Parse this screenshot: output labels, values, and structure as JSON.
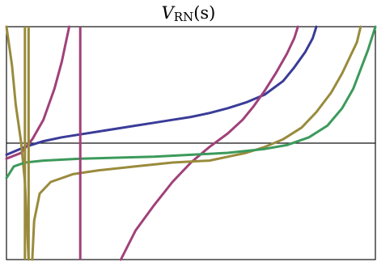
{
  "chart_data": {
    "type": "line",
    "title": {
      "symbol": "V",
      "subscript": "RN",
      "argument": "(s)"
    },
    "axes_frame": true,
    "grid": false,
    "ylim": [
      -6,
      6
    ],
    "xlim": [
      0,
      1
    ],
    "series": [
      {
        "color": "#3A3C98",
        "points": [
          [
            0.0,
            -0.6
          ],
          [
            0.05,
            -0.2
          ],
          [
            0.1,
            0.1
          ],
          [
            0.15,
            0.3
          ],
          [
            0.2,
            0.45
          ],
          [
            0.25,
            0.6
          ],
          [
            0.3,
            0.75
          ],
          [
            0.35,
            0.9
          ],
          [
            0.4,
            1.05
          ],
          [
            0.45,
            1.2
          ],
          [
            0.5,
            1.35
          ],
          [
            0.55,
            1.55
          ],
          [
            0.6,
            1.8
          ],
          [
            0.65,
            2.1
          ],
          [
            0.7,
            2.5
          ],
          [
            0.75,
            3.2
          ],
          [
            0.78,
            3.9
          ],
          [
            0.81,
            4.7
          ],
          [
            0.83,
            5.4
          ],
          [
            0.84,
            6.0
          ]
        ]
      },
      {
        "color": "#A0417A",
        "points": [
          [
            0.0,
            -0.8
          ],
          [
            0.04,
            -0.5
          ],
          [
            0.07,
            0.2
          ],
          [
            0.1,
            1.2
          ],
          [
            0.13,
            2.8
          ],
          [
            0.15,
            4.2
          ],
          [
            0.17,
            6.0
          ]
        ]
      },
      {
        "color": "#A0417A",
        "points": [
          [
            0.31,
            -6.0
          ],
          [
            0.35,
            -4.5
          ],
          [
            0.4,
            -3.2
          ],
          [
            0.45,
            -2.0
          ],
          [
            0.5,
            -1.0
          ],
          [
            0.55,
            -0.2
          ],
          [
            0.6,
            0.5
          ],
          [
            0.64,
            1.2
          ],
          [
            0.67,
            1.9
          ],
          [
            0.7,
            2.7
          ],
          [
            0.73,
            3.6
          ],
          [
            0.76,
            4.6
          ],
          [
            0.78,
            5.4
          ],
          [
            0.79,
            6.0
          ]
        ]
      },
      {
        "color": "#998B3C",
        "points": [
          [
            0.0,
            6.0
          ],
          [
            0.015,
            4.0
          ],
          [
            0.025,
            2.0
          ],
          [
            0.04,
            0.0
          ],
          [
            0.05,
            -2.0
          ],
          [
            0.055,
            -4.0
          ],
          [
            0.06,
            -6.0
          ]
        ]
      },
      {
        "color": "#998B3C",
        "points": [
          [
            0.07,
            -6.0
          ],
          [
            0.075,
            -4.0
          ],
          [
            0.09,
            -2.6
          ],
          [
            0.12,
            -2.0
          ],
          [
            0.18,
            -1.6
          ],
          [
            0.25,
            -1.4
          ],
          [
            0.35,
            -1.2
          ],
          [
            0.45,
            -1.0
          ],
          [
            0.55,
            -0.9
          ],
          [
            0.6,
            -0.7
          ],
          [
            0.65,
            -0.5
          ],
          [
            0.7,
            -0.2
          ],
          [
            0.75,
            0.2
          ],
          [
            0.8,
            0.8
          ],
          [
            0.84,
            1.6
          ],
          [
            0.88,
            2.6
          ],
          [
            0.91,
            3.6
          ],
          [
            0.93,
            4.4
          ],
          [
            0.95,
            5.2
          ],
          [
            0.96,
            6.0
          ]
        ]
      },
      {
        "color": "#3C9A5B",
        "points": [
          [
            0.0,
            -1.8
          ],
          [
            0.02,
            -1.2
          ],
          [
            0.05,
            -1.0
          ],
          [
            0.1,
            -0.9
          ],
          [
            0.2,
            -0.8
          ],
          [
            0.3,
            -0.75
          ],
          [
            0.4,
            -0.7
          ],
          [
            0.5,
            -0.6
          ],
          [
            0.6,
            -0.5
          ],
          [
            0.7,
            -0.3
          ],
          [
            0.76,
            -0.1
          ],
          [
            0.82,
            0.3
          ],
          [
            0.87,
            0.9
          ],
          [
            0.91,
            1.8
          ],
          [
            0.94,
            2.8
          ],
          [
            0.96,
            3.8
          ],
          [
            0.98,
            4.8
          ],
          [
            1.0,
            6.0
          ]
        ]
      }
    ],
    "vertical_lines": [
      {
        "x": 0.05,
        "color": "#998B3C"
      },
      {
        "x": 0.06,
        "color": "#998B3C"
      },
      {
        "x": 0.2,
        "color": "#A0417A"
      }
    ]
  }
}
